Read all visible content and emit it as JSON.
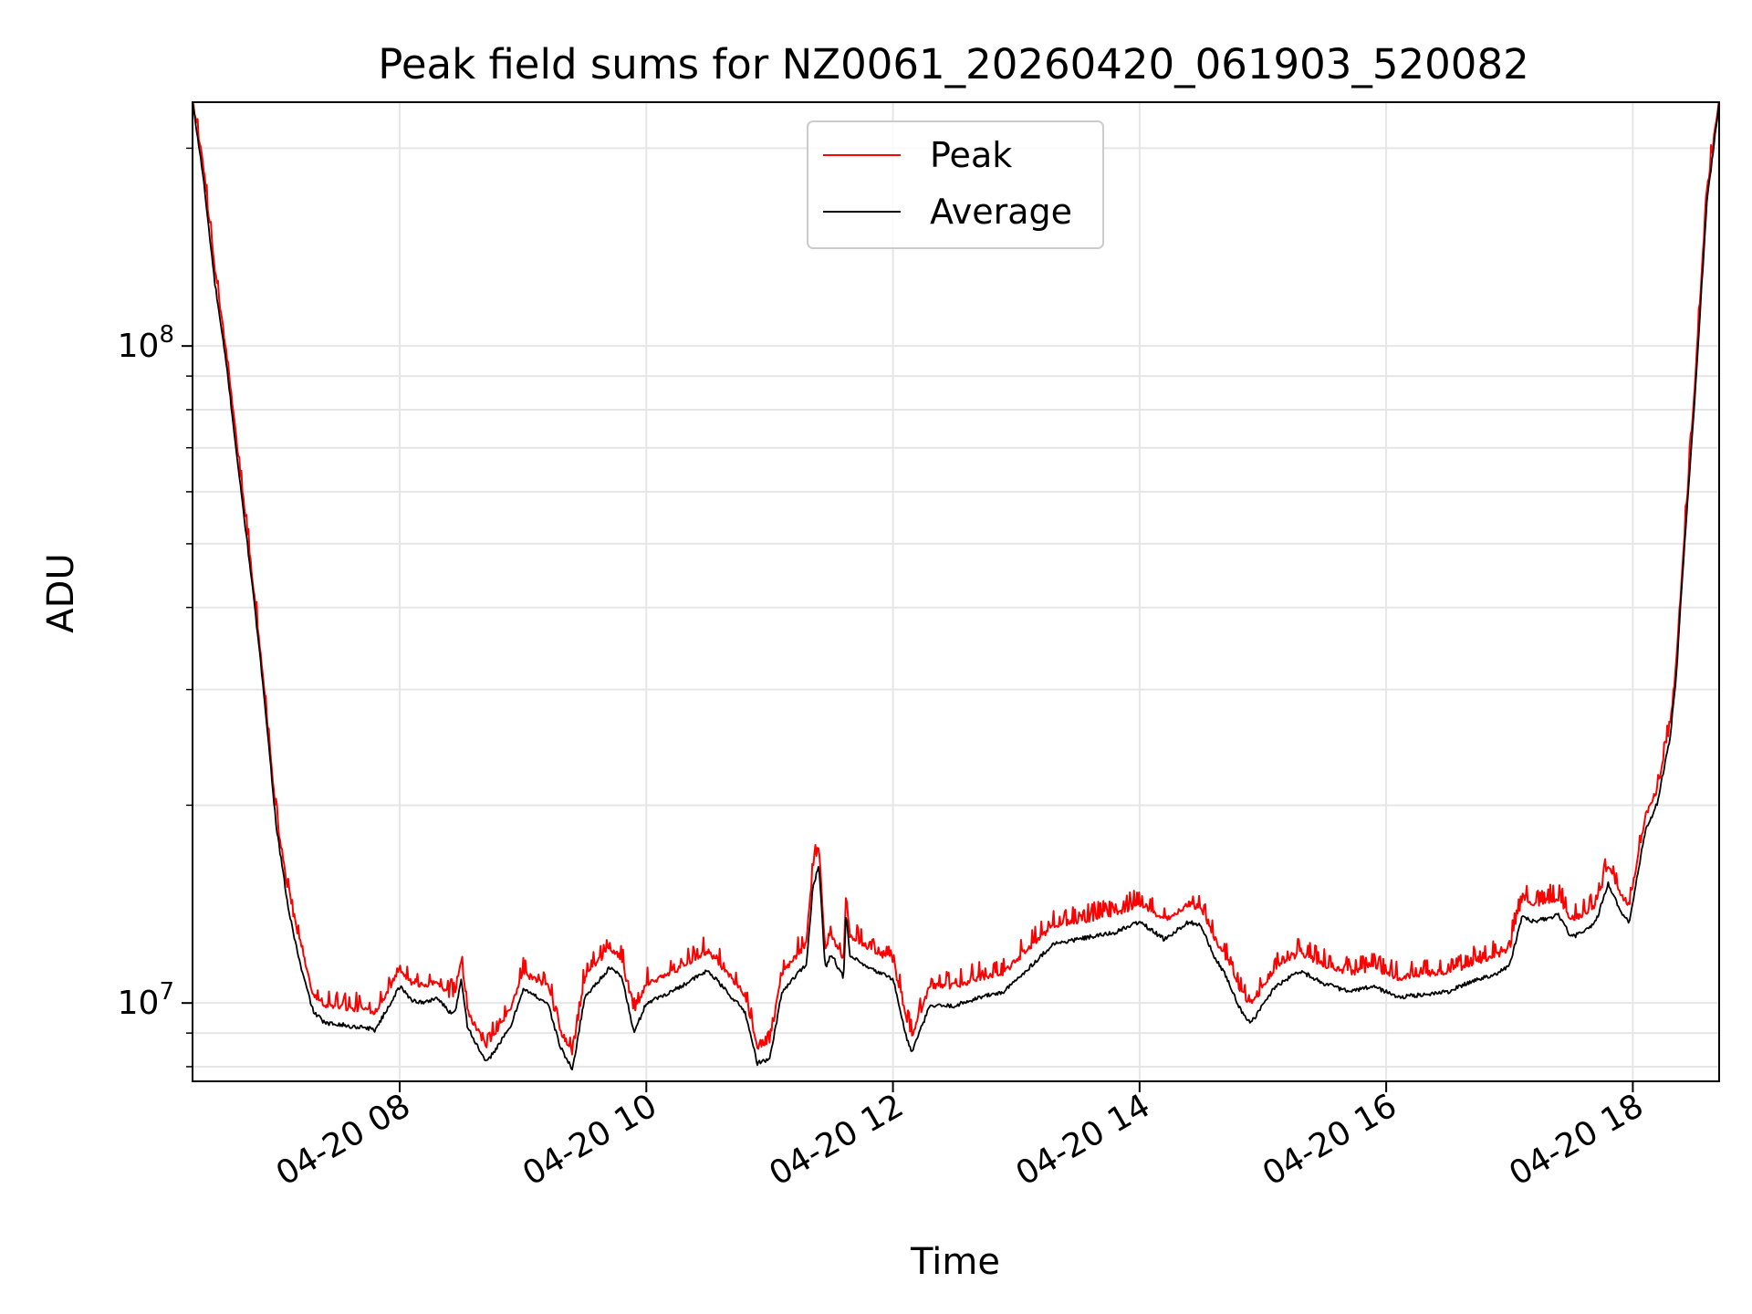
{
  "chart_data": {
    "type": "line",
    "title": "Peak field sums for NZ0061_20260420_061903_520082",
    "xlabel": "Time",
    "ylabel": "ADU",
    "yscale": "log",
    "xlim": [
      6.32,
      18.7
    ],
    "ylim": [
      7600000,
      235000000
    ],
    "grid": true,
    "legend_placement": "upper-center",
    "x_ticks": [
      {
        "value": 8,
        "label": "04-20 08"
      },
      {
        "value": 10,
        "label": "04-20 10"
      },
      {
        "value": 12,
        "label": "04-20 12"
      },
      {
        "value": 14,
        "label": "04-20 14"
      },
      {
        "value": 16,
        "label": "04-20 16"
      },
      {
        "value": 18,
        "label": "04-20 18"
      }
    ],
    "y_major_ticks": [
      {
        "value": 10000000,
        "base": "10",
        "exp": "7"
      },
      {
        "value": 100000000,
        "base": "10",
        "exp": "8"
      }
    ],
    "y_minor_ticks": [
      8000000,
      9000000,
      20000000,
      30000000,
      40000000,
      50000000,
      60000000,
      70000000,
      80000000,
      90000000,
      200000000
    ],
    "x_units": "hours (local time on 2026-04-20)",
    "series": [
      {
        "name": "Peak",
        "color": "#ff0000",
        "noise_amplitude": 0.07,
        "x": [
          6.32,
          6.4,
          6.5,
          6.6,
          6.7,
          6.8,
          6.9,
          7.0,
          7.1,
          7.2,
          7.3,
          7.4,
          7.5,
          7.6,
          7.7,
          7.8,
          7.9,
          8.0,
          8.1,
          8.2,
          8.3,
          8.4,
          8.45,
          8.5,
          8.55,
          8.7,
          8.9,
          9.0,
          9.2,
          9.3,
          9.4,
          9.5,
          9.7,
          9.8,
          9.9,
          10.0,
          10.2,
          10.5,
          10.8,
          10.9,
          11.0,
          11.1,
          11.3,
          11.35,
          11.4,
          11.45,
          11.5,
          11.6,
          11.62,
          11.65,
          11.8,
          12.0,
          12.1,
          12.15,
          12.3,
          12.5,
          12.7,
          12.9,
          13.1,
          13.3,
          13.6,
          13.8,
          14.0,
          14.2,
          14.4,
          14.5,
          14.6,
          14.7,
          14.8,
          14.9,
          15.1,
          15.3,
          15.5,
          15.7,
          15.9,
          16.1,
          16.3,
          16.5,
          16.7,
          16.9,
          17.0,
          17.1,
          17.2,
          17.4,
          17.5,
          17.6,
          17.7,
          17.8,
          17.9,
          17.97,
          18.0,
          18.1,
          18.2,
          18.3,
          18.35,
          18.4,
          18.5,
          18.6,
          18.7
        ],
        "values": [
          235000000,
          190000000,
          130000000,
          95000000,
          65000000,
          45000000,
          30000000,
          19000000,
          14500000,
          12000000,
          10200000,
          9800000,
          9800000,
          9700000,
          9700000,
          9600000,
          10300000,
          11200000,
          10600000,
          10500000,
          10700000,
          10200000,
          10200000,
          11500000,
          9600000,
          8500000,
          9700000,
          11000000,
          10500000,
          9000000,
          8300000,
          10800000,
          12000000,
          11600000,
          9500000,
          10600000,
          11000000,
          11900000,
          10200000,
          8500000,
          8600000,
          11000000,
          12200000,
          16000000,
          17000000,
          12000000,
          12600000,
          11500000,
          14500000,
          12500000,
          12000000,
          11500000,
          9500000,
          8800000,
          10500000,
          10500000,
          10800000,
          11000000,
          12000000,
          13000000,
          13300000,
          13500000,
          14000000,
          13200000,
          14000000,
          13800000,
          12500000,
          11600000,
          10500000,
          9800000,
          11200000,
          11800000,
          11300000,
          11000000,
          11200000,
          10800000,
          10900000,
          11000000,
          11400000,
          11700000,
          12000000,
          14200000,
          14000000,
          14300000,
          13300000,
          13500000,
          14000000,
          16000000,
          14500000,
          14000000,
          15000000,
          19000000,
          21000000,
          26000000,
          32000000,
          45000000,
          85000000,
          170000000,
          235000000
        ]
      },
      {
        "name": "Average",
        "color": "#000000",
        "noise_amplitude": 0.015,
        "x": [
          6.32,
          6.4,
          6.5,
          6.6,
          6.7,
          6.8,
          6.9,
          7.0,
          7.1,
          7.2,
          7.3,
          7.4,
          7.5,
          7.6,
          7.7,
          7.8,
          7.9,
          8.0,
          8.1,
          8.2,
          8.3,
          8.4,
          8.45,
          8.5,
          8.55,
          8.7,
          8.9,
          9.0,
          9.2,
          9.3,
          9.4,
          9.5,
          9.7,
          9.8,
          9.9,
          10.0,
          10.2,
          10.5,
          10.8,
          10.9,
          11.0,
          11.1,
          11.3,
          11.35,
          11.4,
          11.45,
          11.5,
          11.6,
          11.62,
          11.65,
          11.8,
          12.0,
          12.1,
          12.15,
          12.3,
          12.5,
          12.7,
          12.9,
          13.1,
          13.3,
          13.6,
          13.8,
          14.0,
          14.2,
          14.4,
          14.5,
          14.6,
          14.7,
          14.8,
          14.9,
          15.1,
          15.3,
          15.5,
          15.7,
          15.9,
          16.1,
          16.3,
          16.5,
          16.7,
          16.9,
          17.0,
          17.1,
          17.2,
          17.4,
          17.5,
          17.6,
          17.7,
          17.8,
          17.9,
          17.97,
          18.0,
          18.1,
          18.2,
          18.3,
          18.35,
          18.4,
          18.5,
          18.6,
          18.7
        ],
        "values": [
          235000000,
          185000000,
          125000000,
          92000000,
          63000000,
          44000000,
          29500000,
          18500000,
          13800000,
          11300000,
          9700000,
          9300000,
          9300000,
          9200000,
          9200000,
          9100000,
          9800000,
          10600000,
          10100000,
          10000000,
          10200000,
          9700000,
          9700000,
          10900000,
          9200000,
          8100000,
          9200000,
          10500000,
          10000000,
          8600000,
          7900000,
          10200000,
          11300000,
          11000000,
          9000000,
          10000000,
          10400000,
          11200000,
          9700000,
          8100000,
          8200000,
          10400000,
          11500000,
          15000000,
          16200000,
          11300000,
          11900000,
          10900000,
          13700000,
          11800000,
          11300000,
          10900000,
          9000000,
          8400000,
          9900000,
          9900000,
          10200000,
          10400000,
          11300000,
          12300000,
          12600000,
          12800000,
          13300000,
          12500000,
          13300000,
          13100000,
          11800000,
          11000000,
          9900000,
          9300000,
          10600000,
          11200000,
          10700000,
          10400000,
          10600000,
          10200000,
          10300000,
          10400000,
          10800000,
          11100000,
          11400000,
          13500000,
          13300000,
          13600000,
          12600000,
          12800000,
          13300000,
          15200000,
          13800000,
          13300000,
          14300000,
          18200000,
          20200000,
          25200000,
          31000000,
          44000000,
          82000000,
          165000000,
          235000000
        ]
      }
    ]
  }
}
